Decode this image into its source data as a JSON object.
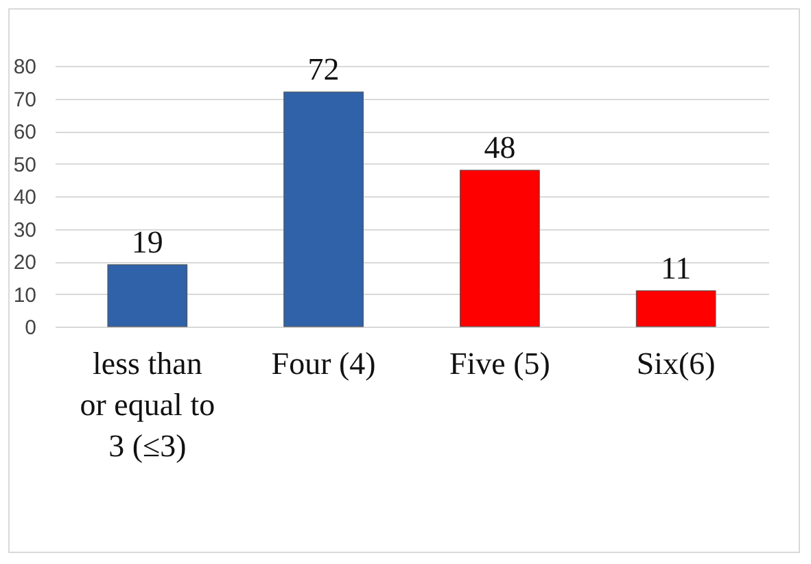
{
  "chart_data": {
    "type": "bar",
    "categories": [
      "less than or equal to 3 (≤3)",
      "Four (4)",
      "Five (5)",
      "Six(6)"
    ],
    "values": [
      19,
      72,
      48,
      11
    ],
    "colors": [
      "#2f62a8",
      "#2f62a8",
      "#ff0000",
      "#ff0000"
    ],
    "ylim": [
      0,
      80
    ],
    "yticks": [
      0,
      10,
      20,
      30,
      40,
      50,
      60,
      70,
      80
    ],
    "grid": "y",
    "data_labels": true
  }
}
